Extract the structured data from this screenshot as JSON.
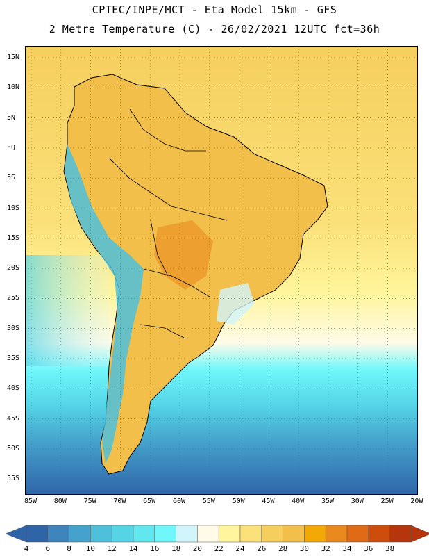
{
  "header": {
    "line1": "CPTEC/INPE/MCT -  Eta Model 15km - GFS",
    "line2": "2 Metre Temperature (C) - 26/02/2021 12UTC fct=36h"
  },
  "map": {
    "lat_labels": [
      "15N",
      "10N",
      "5N",
      "EQ",
      "5S",
      "10S",
      "15S",
      "20S",
      "25S",
      "30S",
      "35S",
      "40S",
      "45S",
      "50S",
      "55S"
    ],
    "lon_labels": [
      "85W",
      "80W",
      "75W",
      "70W",
      "65W",
      "60W",
      "55W",
      "50W",
      "45W",
      "40W",
      "35W",
      "30W",
      "25W",
      "20W"
    ]
  },
  "colorbar": {
    "labels": [
      "4",
      "6",
      "8",
      "10",
      "12",
      "14",
      "16",
      "18",
      "20",
      "22",
      "24",
      "26",
      "28",
      "30",
      "32",
      "34",
      "36",
      "38"
    ],
    "colors": [
      "#2f64a8",
      "#3f85bd",
      "#45a2cc",
      "#4ec0da",
      "#55d4e6",
      "#60e7f0",
      "#6ff7fb",
      "#d2f4fb",
      "#fffbe8",
      "#fff59c",
      "#fbe17a",
      "#f6ce5e",
      "#f2c04a",
      "#f3a806",
      "#ea8a1e",
      "#e06a15",
      "#cf4d0c",
      "#b7350a"
    ]
  }
}
